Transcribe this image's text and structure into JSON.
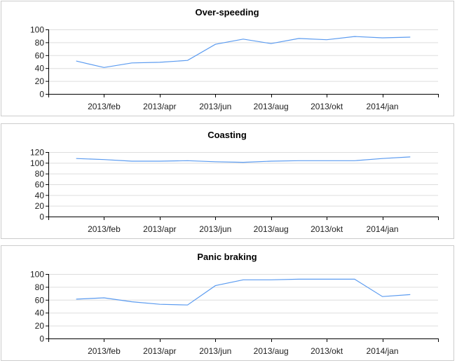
{
  "chart_data": [
    {
      "type": "line",
      "title": "Over-speeding",
      "ylim": [
        0,
        100
      ],
      "yticks": [
        0,
        20,
        40,
        60,
        80,
        100
      ],
      "xtick_labels": [
        "2013/feb",
        "2013/apr",
        "2013/jun",
        "2013/aug",
        "2013/okt",
        "2014/jan"
      ],
      "values": [
        51,
        41,
        48,
        49,
        52,
        77,
        85,
        78,
        86,
        84,
        89,
        87,
        88
      ],
      "color": "#5b9bf0",
      "grid": true
    },
    {
      "type": "line",
      "title": "Coasting",
      "ylim": [
        0,
        120
      ],
      "yticks": [
        0,
        20,
        40,
        60,
        80,
        100,
        120
      ],
      "xtick_labels": [
        "2013/feb",
        "2013/apr",
        "2013/jun",
        "2013/aug",
        "2013/okt",
        "2014/jan"
      ],
      "values": [
        108,
        106,
        103,
        103,
        104,
        102,
        101,
        103,
        104,
        104,
        104,
        108,
        111
      ],
      "color": "#5b9bf0",
      "grid": true
    },
    {
      "type": "line",
      "title": "Panic braking",
      "ylim": [
        0,
        100
      ],
      "yticks": [
        0,
        20,
        40,
        60,
        80,
        100
      ],
      "xtick_labels": [
        "2013/feb",
        "2013/apr",
        "2013/jun",
        "2013/aug",
        "2013/okt",
        "2014/jan"
      ],
      "values": [
        61,
        63,
        57,
        53,
        52,
        82,
        91,
        91,
        92,
        92,
        92,
        65,
        68
      ],
      "color": "#5b9bf0",
      "grid": true
    }
  ]
}
